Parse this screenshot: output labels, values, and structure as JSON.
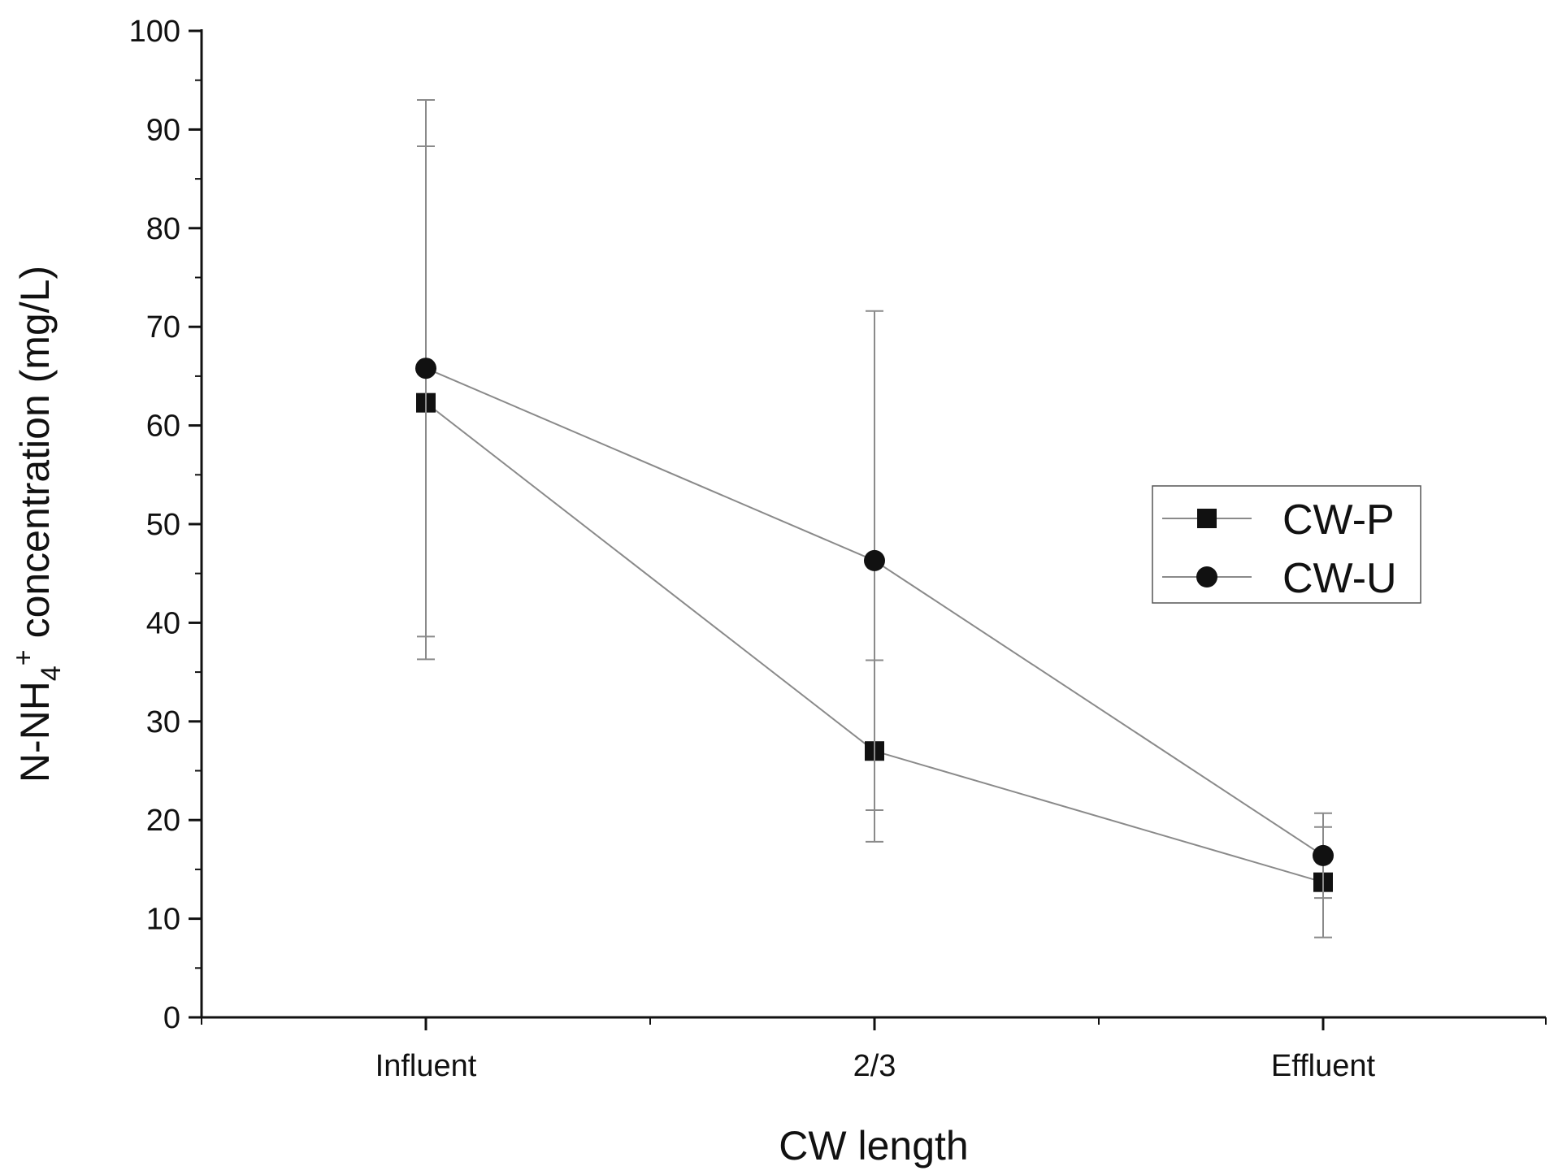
{
  "chart_data": {
    "type": "line",
    "title": "",
    "xlabel": "CW length",
    "ylabel": {
      "main": "N-NH",
      "subscript": "4",
      "superscript": "+",
      "rest": " concentration (mg/L)"
    },
    "categories": [
      "Influent",
      "2/3",
      "Effluent"
    ],
    "ylim": [
      0,
      100
    ],
    "yticks": [
      "0",
      "10",
      "20",
      "30",
      "40",
      "50",
      "60",
      "70",
      "80",
      "90",
      "100"
    ],
    "grid": false,
    "legend_position": "right",
    "series": [
      {
        "name": "CW-P",
        "marker": "square",
        "values": [
          62.3,
          27.0,
          13.7
        ],
        "error": [
          26.0,
          9.2,
          5.6
        ]
      },
      {
        "name": "CW-U",
        "marker": "circle",
        "values": [
          65.8,
          46.3,
          16.4
        ],
        "error": [
          27.2,
          25.3,
          4.3
        ]
      }
    ],
    "colors": {
      "axis": "#111111",
      "marker": "#111111",
      "line": "#8a8a8a",
      "errorbar": "#8a8a8a"
    }
  }
}
